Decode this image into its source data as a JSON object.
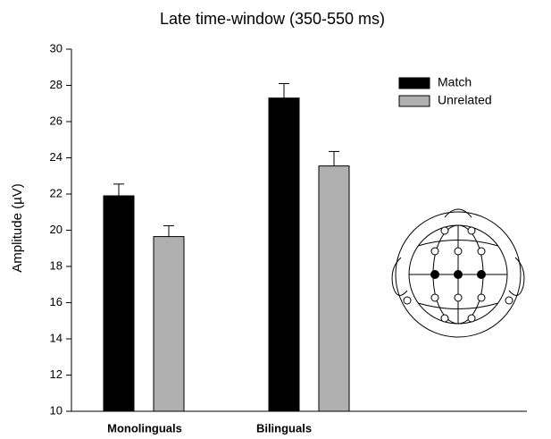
{
  "chart_data": {
    "type": "bar",
    "title": "Late time-window (350-550 ms)",
    "y_label": "Amplitude (µV)",
    "categories": [
      "Monolinguals",
      "Bilinguals"
    ],
    "series": [
      {
        "name": "Match",
        "color": "#000000",
        "values": [
          21.9,
          27.3
        ],
        "errors": [
          0.65,
          0.8
        ]
      },
      {
        "name": "Unrelated",
        "color": "#b0b0b0",
        "values": [
          19.65,
          23.55
        ],
        "errors": [
          0.6,
          0.8
        ]
      }
    ],
    "ylim": [
      10,
      30
    ],
    "yticks": [
      10,
      12,
      14,
      16,
      18,
      20,
      22,
      24,
      26,
      28,
      30
    ],
    "grid": false,
    "legend": "upper right"
  }
}
